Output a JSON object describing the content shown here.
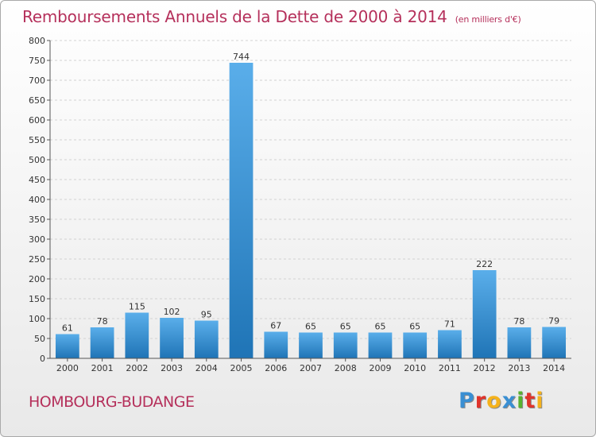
{
  "header": {
    "title": "Remboursements Annuels de la Dette de 2000 à 2014",
    "unit": "(en milliers d'€)"
  },
  "footer": {
    "commune": "HOMBOURG-BUDANGE",
    "logo_letters": [
      "P",
      "r",
      "o",
      "x",
      "i",
      "t",
      "i"
    ],
    "logo_colors": [
      "#3a8fd3",
      "#e0342c",
      "#f5b21b",
      "#3a8fd3",
      "#58b12f",
      "#e0342c",
      "#f5b21b"
    ]
  },
  "chart_data": {
    "type": "bar",
    "categories": [
      "2000",
      "2001",
      "2002",
      "2003",
      "2004",
      "2005",
      "2006",
      "2007",
      "2008",
      "2009",
      "2010",
      "2011",
      "2012",
      "2013",
      "2014"
    ],
    "values": [
      61,
      78,
      115,
      102,
      95,
      744,
      67,
      65,
      65,
      65,
      65,
      71,
      222,
      78,
      79
    ],
    "data_labels": [
      "61",
      "78",
      "115",
      "102",
      "95",
      "744",
      "67",
      "65",
      "65",
      "65",
      "65",
      "71",
      "222",
      "78",
      "79"
    ],
    "yticks": [
      "0",
      "50",
      "100",
      "150",
      "200",
      "250",
      "300",
      "350",
      "400",
      "450",
      "500",
      "550",
      "600",
      "650",
      "700",
      "750",
      "800"
    ],
    "ylim": [
      0,
      800
    ],
    "grid": true,
    "bar_color_light": "#5aaeea",
    "bar_color_dark": "#1f74b6",
    "title": "Remboursements Annuels de la Dette de 2000 à 2014",
    "xlabel": "",
    "ylabel": ""
  }
}
